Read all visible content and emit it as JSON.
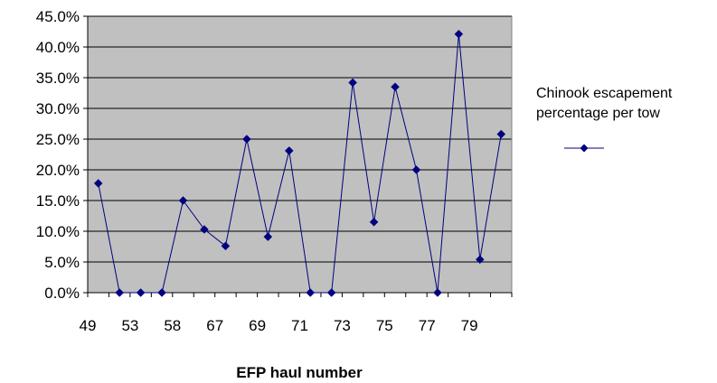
{
  "chart_data": {
    "type": "line",
    "xlabel": "EFP haul number",
    "ylabel": "",
    "ylim": [
      0,
      45
    ],
    "y_tick_step": 5,
    "y_tick_labels": [
      "0.0%",
      "5.0%",
      "10.0%",
      "15.0%",
      "20.0%",
      "25.0%",
      "30.0%",
      "35.0%",
      "40.0%",
      "45.0%"
    ],
    "x_tick_labels": [
      "49",
      "53",
      "58",
      "67",
      "69",
      "71",
      "73",
      "75",
      "77",
      "79"
    ],
    "grid": true,
    "plot_background": "#c0c0c0",
    "legend_position": "right",
    "series": [
      {
        "name": "Chinook escapement percentage per tow",
        "color": "#000080",
        "marker": "diamond",
        "values": [
          17.8,
          0.0,
          0.0,
          0.0,
          15.0,
          10.3,
          7.6,
          25.0,
          9.1,
          23.1,
          0.0,
          0.0,
          34.2,
          11.5,
          33.5,
          20.0,
          0.0,
          42.1,
          5.4,
          25.8
        ]
      }
    ]
  },
  "legend": {
    "line1": "Chinook escapement",
    "line2": "percentage per tow"
  }
}
